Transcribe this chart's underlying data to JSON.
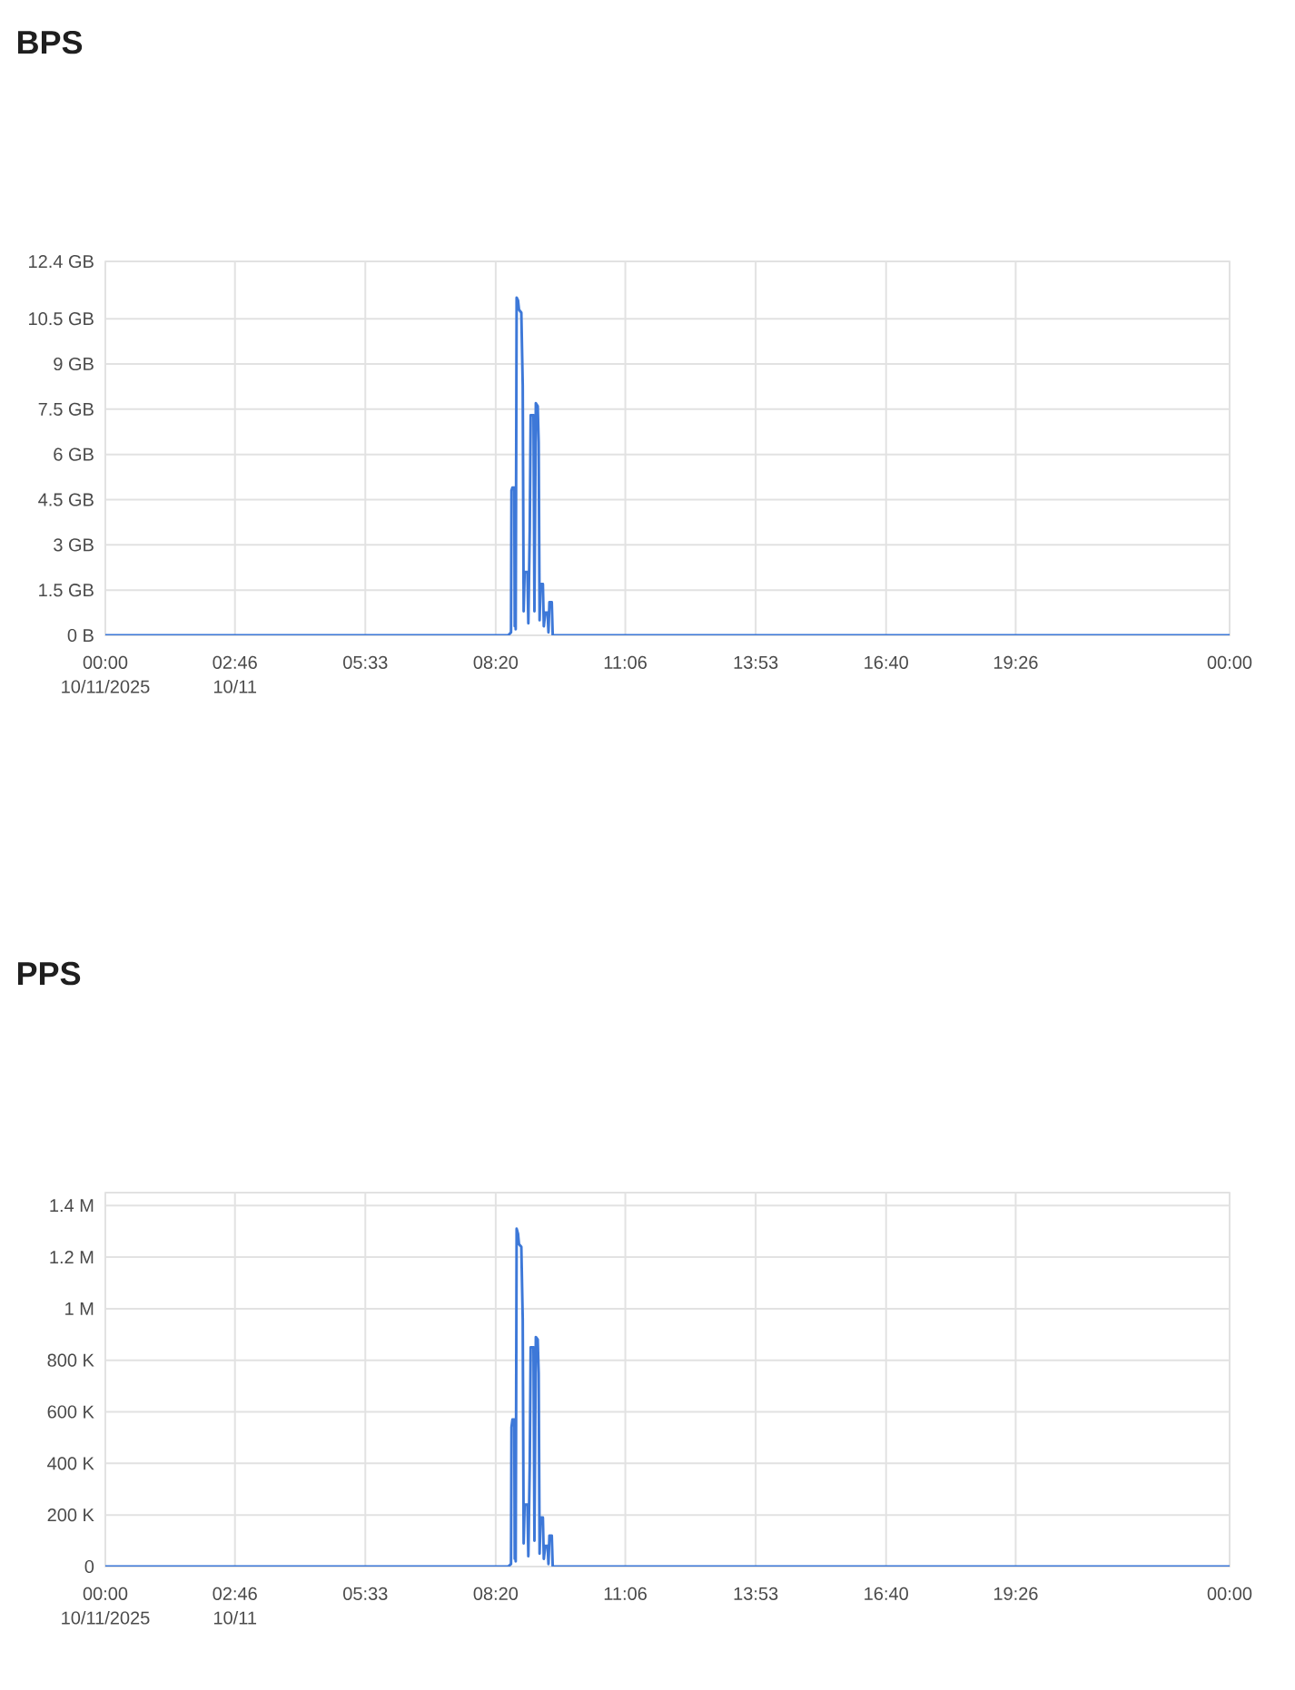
{
  "chart_data": [
    {
      "type": "line",
      "title": "BPS",
      "color": "#3d78d8",
      "x": [
        0,
        8.6,
        8.66,
        8.67,
        8.69,
        8.73,
        8.74,
        8.75,
        8.76,
        8.78,
        8.81,
        8.83,
        8.88,
        8.91,
        8.93,
        8.95,
        9.01,
        9.03,
        9.06,
        9.08,
        9.14,
        9.16,
        9.19,
        9.23,
        9.25,
        9.27,
        9.29,
        9.34,
        9.36,
        9.39,
        9.44,
        9.46,
        9.48,
        9.53,
        9.55,
        24
      ],
      "values": [
        0,
        0,
        0.1,
        4.8,
        4.9,
        4.9,
        0.3,
        2.2,
        0.2,
        11.2,
        11.1,
        10.8,
        10.7,
        8.3,
        0.8,
        2.1,
        2.1,
        0.4,
        3.5,
        7.3,
        7.3,
        0.8,
        7.7,
        7.6,
        6.4,
        0.5,
        1.7,
        1.7,
        0.3,
        0.75,
        0.75,
        0.1,
        1.1,
        1.1,
        0,
        0
      ],
      "xlim": [
        0,
        24
      ],
      "xticks": [
        {
          "value": 0,
          "label": "00:00 10/11/2025"
        },
        {
          "value": 2.7667,
          "label": "02:46 10/11"
        },
        {
          "value": 5.55,
          "label": "05:33"
        },
        {
          "value": 8.3333,
          "label": "08:20"
        },
        {
          "value": 11.1,
          "label": "11:06"
        },
        {
          "value": 13.8833,
          "label": "13:53"
        },
        {
          "value": 16.6667,
          "label": "16:40"
        },
        {
          "value": 19.4333,
          "label": "19:26"
        },
        {
          "value": 24,
          "label": "00:00"
        }
      ],
      "ylim": [
        0,
        12.4
      ],
      "yticks": [
        {
          "value": 0,
          "label": "0 B"
        },
        {
          "value": 1.5,
          "label": "1.5 GB"
        },
        {
          "value": 3,
          "label": "3 GB"
        },
        {
          "value": 4.5,
          "label": "4.5 GB"
        },
        {
          "value": 6,
          "label": "6 GB"
        },
        {
          "value": 7.5,
          "label": "7.5 GB"
        },
        {
          "value": 9,
          "label": "9 GB"
        },
        {
          "value": 10.5,
          "label": "10.5 GB"
        },
        {
          "value": 12.4,
          "label": "12.4 GB"
        }
      ],
      "grid": true
    },
    {
      "type": "line",
      "title": "PPS",
      "color": "#3d78d8",
      "x": [
        0,
        8.6,
        8.66,
        8.67,
        8.69,
        8.73,
        8.74,
        8.75,
        8.76,
        8.78,
        8.81,
        8.83,
        8.88,
        8.91,
        8.93,
        8.95,
        9.01,
        9.03,
        9.06,
        9.08,
        9.14,
        9.16,
        9.19,
        9.23,
        9.25,
        9.27,
        9.29,
        9.34,
        9.36,
        9.39,
        9.44,
        9.46,
        9.48,
        9.53,
        9.55,
        24
      ],
      "values": [
        0,
        0,
        10000,
        540000,
        570000,
        570000,
        30000,
        270000,
        20000,
        1310000,
        1290000,
        1250000,
        1240000,
        960000,
        90000,
        240000,
        240000,
        40000,
        400000,
        850000,
        850000,
        100000,
        890000,
        880000,
        750000,
        50000,
        190000,
        190000,
        30000,
        80000,
        80000,
        10000,
        120000,
        120000,
        0,
        0
      ],
      "xlim": [
        0,
        24
      ],
      "xticks": [
        {
          "value": 0,
          "label": "00:00 10/11/2025"
        },
        {
          "value": 2.7667,
          "label": "02:46 10/11"
        },
        {
          "value": 5.55,
          "label": "05:33"
        },
        {
          "value": 8.3333,
          "label": "08:20"
        },
        {
          "value": 11.1,
          "label": "11:06"
        },
        {
          "value": 13.8833,
          "label": "13:53"
        },
        {
          "value": 16.6667,
          "label": "16:40"
        },
        {
          "value": 19.4333,
          "label": "19:26"
        },
        {
          "value": 24,
          "label": "00:00"
        }
      ],
      "ylim": [
        0,
        1450000
      ],
      "yticks": [
        0,
        {
          "value": 200000,
          "label": "200 K"
        },
        {
          "value": 400000,
          "label": "400 K"
        },
        {
          "value": 600000,
          "label": "600 K"
        },
        {
          "value": 800000,
          "label": "800 K"
        },
        {
          "value": 1000000,
          "label": "1 M"
        },
        {
          "value": 1200000,
          "label": "1.2 M"
        },
        {
          "value": 1400000,
          "label": "1.4 M"
        }
      ],
      "grid": true
    }
  ]
}
